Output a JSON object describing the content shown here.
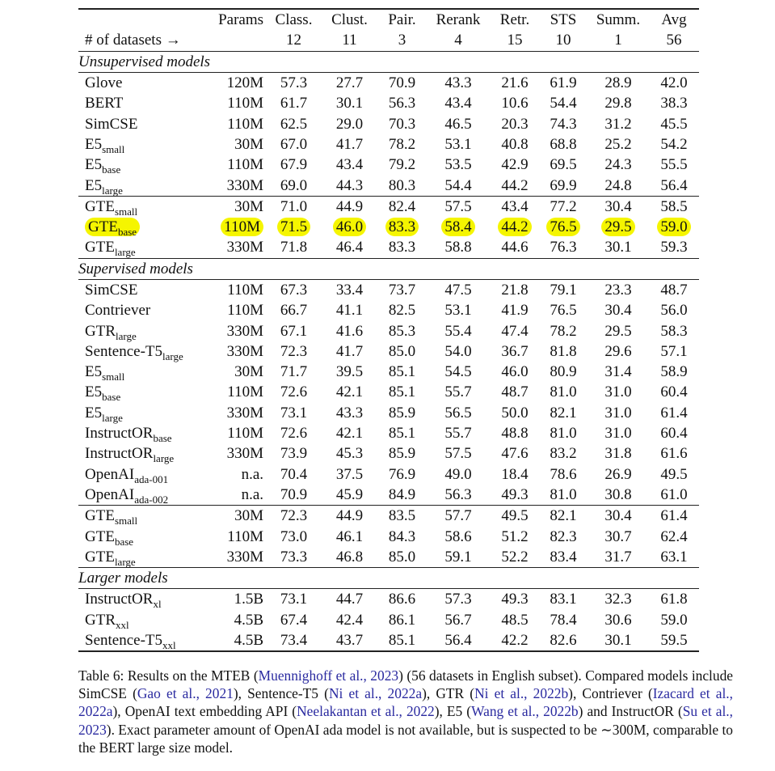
{
  "table": {
    "header": {
      "top": [
        "",
        "Params",
        "Class.",
        "Clust.",
        "Pair.",
        "Rerank",
        "Retr.",
        "STS",
        "Summ.",
        "Avg"
      ],
      "bottom": [
        "# of datasets →",
        "",
        "12",
        "11",
        "3",
        "4",
        "15",
        "10",
        "1",
        "56"
      ]
    },
    "highlight_color": "#f5f500",
    "sections": [
      {
        "label": "Unsupervised models",
        "groups": [
          [
            {
              "name": "Glove",
              "sub": "",
              "params": "120M",
              "values": [
                "57.3",
                "27.7",
                "70.9",
                "43.3",
                "21.6",
                "61.9",
                "28.9",
                "42.0"
              ]
            },
            {
              "name": "BERT",
              "sub": "",
              "params": "110M",
              "values": [
                "61.7",
                "30.1",
                "56.3",
                "43.4",
                "10.6",
                "54.4",
                "29.8",
                "38.3"
              ]
            },
            {
              "name": "SimCSE",
              "sub": "",
              "params": "110M",
              "values": [
                "62.5",
                "29.0",
                "70.3",
                "46.5",
                "20.3",
                "74.3",
                "31.2",
                "45.5"
              ]
            },
            {
              "name": "E5",
              "sub": "small",
              "params": "30M",
              "values": [
                "67.0",
                "41.7",
                "78.2",
                "53.1",
                "40.8",
                "68.8",
                "25.2",
                "54.2"
              ]
            },
            {
              "name": "E5",
              "sub": "base",
              "params": "110M",
              "values": [
                "67.9",
                "43.4",
                "79.2",
                "53.5",
                "42.9",
                "69.5",
                "24.3",
                "55.5"
              ]
            },
            {
              "name": "E5",
              "sub": "large",
              "params": "330M",
              "values": [
                "69.0",
                "44.3",
                "80.3",
                "54.4",
                "44.2",
                "69.9",
                "24.8",
                "56.4"
              ]
            }
          ],
          [
            {
              "name": "GTE",
              "sub": "small",
              "params": "30M",
              "values": [
                "71.0",
                "44.9",
                "82.4",
                "57.5",
                "43.4",
                "77.2",
                "30.4",
                "58.5"
              ]
            },
            {
              "name": "GTE",
              "sub": "base",
              "params": "110M",
              "values": [
                "71.5",
                "46.0",
                "83.3",
                "58.4",
                "44.2",
                "76.5",
                "29.5",
                "59.0"
              ],
              "highlighted": true
            },
            {
              "name": "GTE",
              "sub": "large",
              "params": "330M",
              "values": [
                "71.8",
                "46.4",
                "83.3",
                "58.8",
                "44.6",
                "76.3",
                "30.1",
                "59.3"
              ]
            }
          ]
        ]
      },
      {
        "label": "Supervised models",
        "groups": [
          [
            {
              "name": "SimCSE",
              "sub": "",
              "params": "110M",
              "values": [
                "67.3",
                "33.4",
                "73.7",
                "47.5",
                "21.8",
                "79.1",
                "23.3",
                "48.7"
              ]
            },
            {
              "name": "Contriever",
              "sub": "",
              "params": "110M",
              "values": [
                "66.7",
                "41.1",
                "82.5",
                "53.1",
                "41.9",
                "76.5",
                "30.4",
                "56.0"
              ]
            },
            {
              "name": "GTR",
              "sub": "large",
              "params": "330M",
              "values": [
                "67.1",
                "41.6",
                "85.3",
                "55.4",
                "47.4",
                "78.2",
                "29.5",
                "58.3"
              ]
            },
            {
              "name": "Sentence-T5",
              "sub": "large",
              "params": "330M",
              "values": [
                "72.3",
                "41.7",
                "85.0",
                "54.0",
                "36.7",
                "81.8",
                "29.6",
                "57.1"
              ]
            },
            {
              "name": "E5",
              "sub": "small",
              "params": "30M",
              "values": [
                "71.7",
                "39.5",
                "85.1",
                "54.5",
                "46.0",
                "80.9",
                "31.4",
                "58.9"
              ]
            },
            {
              "name": "E5",
              "sub": "base",
              "params": "110M",
              "values": [
                "72.6",
                "42.1",
                "85.1",
                "55.7",
                "48.7",
                "81.0",
                "31.0",
                "60.4"
              ]
            },
            {
              "name": "E5",
              "sub": "large",
              "params": "330M",
              "values": [
                "73.1",
                "43.3",
                "85.9",
                "56.5",
                "50.0",
                "82.1",
                "31.0",
                "61.4"
              ]
            },
            {
              "name": "InstructOR",
              "sub": "base",
              "params": "110M",
              "values": [
                "72.6",
                "42.1",
                "85.1",
                "55.7",
                "48.8",
                "81.0",
                "31.0",
                "60.4"
              ]
            },
            {
              "name": "InstructOR",
              "sub": "large",
              "params": "330M",
              "values": [
                "73.9",
                "45.3",
                "85.9",
                "57.5",
                "47.6",
                "83.2",
                "31.8",
                "61.6"
              ]
            },
            {
              "name": "OpenAI",
              "sub": "ada-001",
              "params": "n.a.",
              "values": [
                "70.4",
                "37.5",
                "76.9",
                "49.0",
                "18.4",
                "78.6",
                "26.9",
                "49.5"
              ]
            },
            {
              "name": "OpenAI",
              "sub": "ada-002",
              "params": "n.a.",
              "values": [
                "70.9",
                "45.9",
                "84.9",
                "56.3",
                "49.3",
                "81.0",
                "30.8",
                "61.0"
              ]
            }
          ],
          [
            {
              "name": "GTE",
              "sub": "small",
              "params": "30M",
              "values": [
                "72.3",
                "44.9",
                "83.5",
                "57.7",
                "49.5",
                "82.1",
                "30.4",
                "61.4"
              ]
            },
            {
              "name": "GTE",
              "sub": "base",
              "params": "110M",
              "values": [
                "73.0",
                "46.1",
                "84.3",
                "58.6",
                "51.2",
                "82.3",
                "30.7",
                "62.4"
              ]
            },
            {
              "name": "GTE",
              "sub": "large",
              "params": "330M",
              "values": [
                "73.3",
                "46.8",
                "85.0",
                "59.1",
                "52.2",
                "83.4",
                "31.7",
                "63.1"
              ]
            }
          ]
        ]
      },
      {
        "label": "Larger models",
        "groups": [
          [
            {
              "name": "InstructOR",
              "sub": "xl",
              "params": "1.5B",
              "values": [
                "73.1",
                "44.7",
                "86.6",
                "57.3",
                "49.3",
                "83.1",
                "32.3",
                "61.8"
              ]
            },
            {
              "name": "GTR",
              "sub": "xxl",
              "params": "4.5B",
              "values": [
                "67.4",
                "42.4",
                "86.1",
                "56.7",
                "48.5",
                "78.4",
                "30.6",
                "59.0"
              ]
            },
            {
              "name": "Sentence-T5",
              "sub": "xxl",
              "params": "4.5B",
              "values": [
                "73.4",
                "43.7",
                "85.1",
                "56.4",
                "42.2",
                "82.6",
                "30.1",
                "59.5"
              ]
            }
          ]
        ]
      }
    ]
  },
  "caption": {
    "link_color": "#2a2aa0",
    "segments": [
      {
        "text": "Table 6: Results on the MTEB (",
        "link": false
      },
      {
        "text": "Muennighoff et al., 2023",
        "link": true
      },
      {
        "text": ") (56 datasets in English subset). Compared models include SimCSE (",
        "link": false
      },
      {
        "text": "Gao et al., 2021",
        "link": true
      },
      {
        "text": "), Sentence-T5 (",
        "link": false
      },
      {
        "text": "Ni et al., 2022a",
        "link": true
      },
      {
        "text": "), GTR (",
        "link": false
      },
      {
        "text": "Ni et al., 2022b",
        "link": true
      },
      {
        "text": "), Contriever (",
        "link": false
      },
      {
        "text": "Izacard et al., 2022a",
        "link": true
      },
      {
        "text": "), OpenAI text embedding API (",
        "link": false
      },
      {
        "text": "Neelakantan et al., 2022",
        "link": true
      },
      {
        "text": "), E5 (",
        "link": false
      },
      {
        "text": "Wang et al., 2022b",
        "link": true
      },
      {
        "text": ") and InstructOR (",
        "link": false
      },
      {
        "text": "Su et al., 2023",
        "link": true
      },
      {
        "text": "). Exact parameter amount of OpenAI ada model is not available, but is suspected to be ∼300M, comparable to the BERT large size model.",
        "link": false
      }
    ]
  }
}
